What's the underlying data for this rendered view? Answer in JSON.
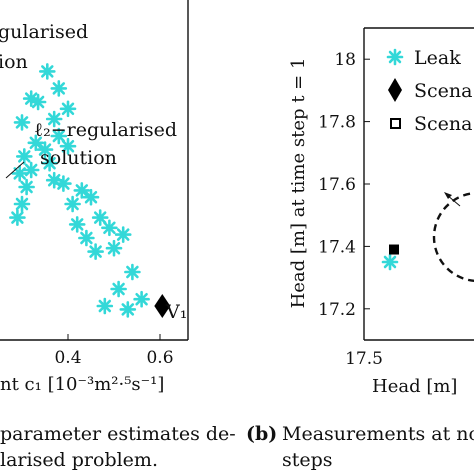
{
  "chart_data": [
    {
      "type": "scatter",
      "panel": "(a)",
      "xlabel": "nt c₁ [10⁻³m²·⁵s⁻¹]",
      "x_ticks": [
        "0.4",
        "0.6"
      ],
      "xlim": [
        0.27,
        0.68
      ],
      "ylim": [
        0.0,
        1.0
      ],
      "annotations": [
        {
          "text_line1": "gularised",
          "text_line2": "ion"
        },
        {
          "text_line1": "ℓ₂−regularised",
          "text_line2": "solution"
        }
      ],
      "series": [
        {
          "marker": "asterisk",
          "color": "#33d8d8",
          "points": [
            [
              0.29,
              0.36
            ],
            [
              0.3,
              0.4
            ],
            [
              0.295,
              0.49
            ],
            [
              0.31,
              0.45
            ],
            [
              0.305,
              0.54
            ],
            [
              0.32,
              0.5
            ],
            [
              0.33,
              0.58
            ],
            [
              0.35,
              0.56
            ],
            [
              0.36,
              0.52
            ],
            [
              0.38,
              0.6
            ],
            [
              0.4,
              0.57
            ],
            [
              0.37,
              0.47
            ],
            [
              0.39,
              0.46
            ],
            [
              0.41,
              0.4
            ],
            [
              0.43,
              0.44
            ],
            [
              0.45,
              0.42
            ],
            [
              0.42,
              0.34
            ],
            [
              0.44,
              0.3
            ],
            [
              0.47,
              0.36
            ],
            [
              0.49,
              0.33
            ],
            [
              0.46,
              0.26
            ],
            [
              0.5,
              0.27
            ],
            [
              0.52,
              0.31
            ],
            [
              0.54,
              0.2
            ],
            [
              0.51,
              0.15
            ],
            [
              0.48,
              0.1
            ],
            [
              0.53,
              0.09
            ],
            [
              0.56,
              0.12
            ],
            [
              0.335,
              0.7
            ],
            [
              0.355,
              0.79
            ],
            [
              0.38,
              0.74
            ],
            [
              0.37,
              0.65
            ],
            [
              0.4,
              0.68
            ],
            [
              0.3,
              0.64
            ],
            [
              0.32,
              0.71
            ]
          ]
        },
        {
          "marker": "diamond",
          "color": "#000000",
          "label": "V₁",
          "points": [
            [
              0.605,
              0.1
            ]
          ]
        }
      ]
    },
    {
      "type": "scatter",
      "panel": "(b)",
      "ylabel": "Head [m] at time step t = 1",
      "xlabel": "Head [m]",
      "x_ticks": [
        "17.5"
      ],
      "y_ticks": [
        "17.2",
        "17.4",
        "17.6",
        "17.8",
        "18"
      ],
      "ylim": [
        17.1,
        18.1
      ],
      "legend": {
        "placement": "top-right",
        "entries": [
          {
            "marker": "asterisk",
            "color": "#33d8d8",
            "label": "Leak"
          },
          {
            "marker": "diamond",
            "color": "#000000",
            "label": "Scena"
          },
          {
            "marker": "square",
            "color": "#000000",
            "label": "Scena"
          }
        ]
      },
      "series": [
        {
          "marker": "asterisk",
          "color": "#33d8d8",
          "points": [
            [
              17.63,
              17.35
            ]
          ]
        },
        {
          "marker": "square",
          "color": "#000000",
          "points": [
            [
              17.65,
              17.39
            ]
          ]
        }
      ]
    }
  ],
  "captions": {
    "a_line1": " parameter estimates de-",
    "a_line2": "larised problem.",
    "b_label": "(b)",
    "b_line1": "Measurements at no",
    "b_line2": "steps"
  }
}
